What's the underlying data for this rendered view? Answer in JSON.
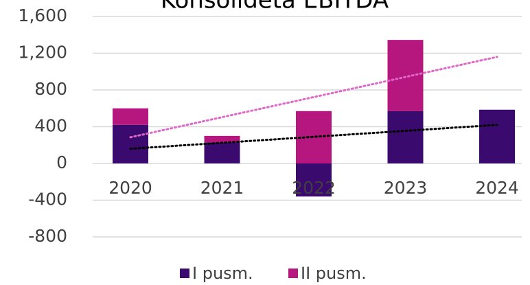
{
  "chart_data": {
    "type": "bar",
    "stacked": true,
    "title": "Konsolidētā EBITDA",
    "categories": [
      "2020",
      "2021",
      "2022",
      "2023",
      "2024"
    ],
    "series": [
      {
        "name": "I pusm.",
        "color": "#3a0a6e",
        "values": [
          420,
          230,
          -360,
          570,
          585
        ]
      },
      {
        "name": "II pusm.",
        "color": "#b5177f",
        "values": [
          180,
          70,
          570,
          775,
          null
        ]
      }
    ],
    "trendlines": [
      {
        "color": "#000000",
        "values": [
          160,
          420
        ]
      },
      {
        "color": "#e066c8",
        "values": [
          285,
          1160
        ]
      }
    ],
    "ylim": [
      -800,
      1600
    ],
    "yticks": [
      -800,
      -400,
      0,
      400,
      800,
      {
        "value": 1200,
        "label": "1,200"
      },
      {
        "value": 1600,
        "label": "1,600"
      }
    ],
    "grid": true,
    "legend": "bottom"
  }
}
